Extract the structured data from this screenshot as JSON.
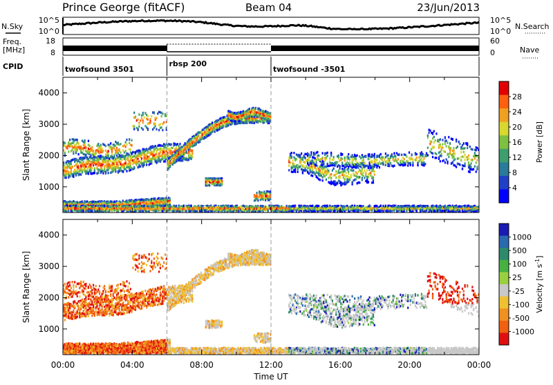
{
  "header": {
    "station": "Prince George (fitACF)",
    "beam": "Beam 04",
    "date": "23/Jun/2013"
  },
  "strip_labels": {
    "nsky": "N.Sky",
    "freq_top": "Freq.",
    "freq_unit": "[MHz]",
    "cpid": "CPID",
    "nsearch": "N.Search",
    "nave": "Nave",
    "noise_ticks_left": [
      "10^5",
      "10^0"
    ],
    "noise_ticks_right": [
      "10^5",
      "10^0"
    ],
    "freq_ticks": [
      "18",
      "8"
    ],
    "nave_ticks": [
      "60",
      "0"
    ]
  },
  "cpid_segments": [
    {
      "label": "twofsound 3501",
      "start_h": 0,
      "end_h": 6
    },
    {
      "label": "rbsp 200",
      "start_h": 6,
      "end_h": 12
    },
    {
      "label": "twofsound -3501",
      "start_h": 12,
      "end_h": 24
    }
  ],
  "chart_data": [
    {
      "type": "heatmap",
      "quantity": "Power",
      "ylabel": "Slant Range [km]",
      "xlabel": "Time UT",
      "xlim_h": [
        0,
        24
      ],
      "ylim_km": [
        180,
        4500
      ],
      "yticks": [
        "1000",
        "2000",
        "3000",
        "4000"
      ],
      "colorbar_label": "Power [dB]",
      "colorbar_ticks": [
        "4",
        "8",
        "12",
        "16",
        "20",
        "24",
        "28"
      ],
      "colorbar_range": [
        0,
        32
      ],
      "colors": [
        "#0000ff",
        "#2040c8",
        "#2a7a9a",
        "#3f9e6e",
        "#7fc040",
        "#d8d830",
        "#f0a020",
        "#ff6010",
        "#e00000"
      ]
    },
    {
      "type": "heatmap",
      "quantity": "Velocity",
      "ylabel": "Slant Range [km]",
      "xlabel": "Time UT",
      "xlim_h": [
        0,
        24
      ],
      "ylim_km": [
        180,
        4500
      ],
      "yticks": [
        "1000",
        "2000",
        "3000",
        "4000"
      ],
      "colorbar_label": "Velocity [m s",
      "colorbar_label_sup": "-1",
      "colorbar_label_end": "]",
      "colorbar_ticks": [
        "1000",
        "500",
        "100",
        "25",
        "-25",
        "-100",
        "-500",
        "-1000"
      ],
      "colors": [
        "#1a1ab4",
        "#2a6ab0",
        "#2e8a6a",
        "#48b040",
        "#9ad040",
        "#c8c8c8",
        "#f0c030",
        "#f09020",
        "#f06010",
        "#e01010"
      ]
    }
  ],
  "time_axis": {
    "title": "Time UT",
    "ticks": [
      "00:00",
      "04:00",
      "08:00",
      "12:00",
      "16:00",
      "20:00",
      "00:00"
    ]
  }
}
